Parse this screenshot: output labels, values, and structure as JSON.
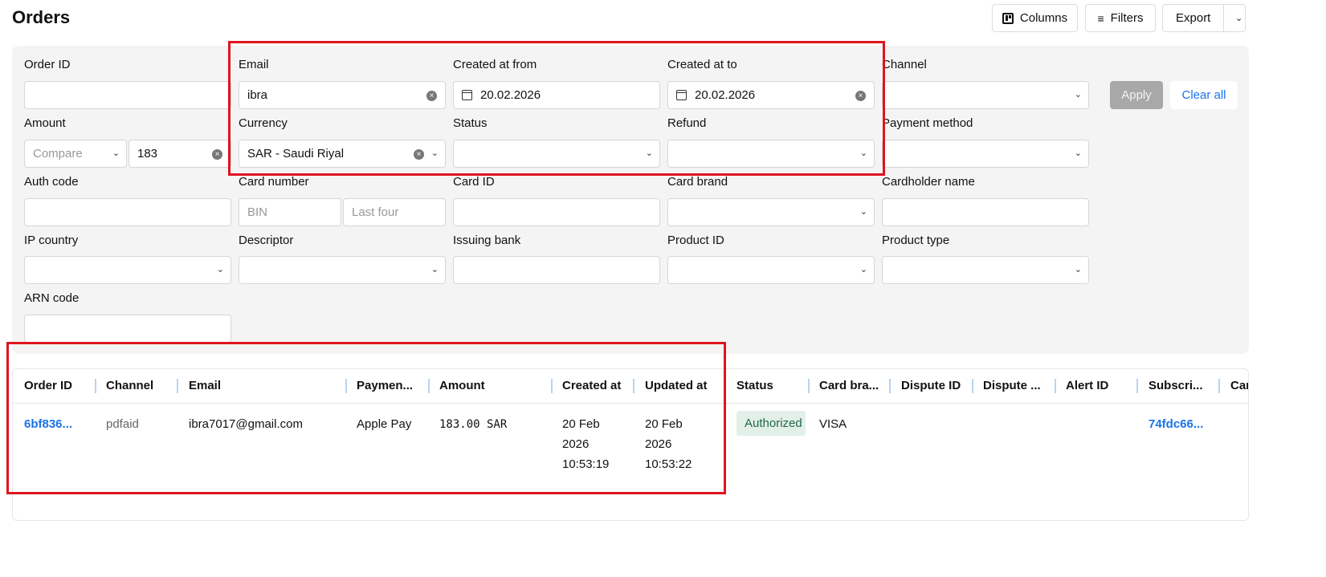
{
  "page_title": "Orders",
  "toolbar": {
    "columns": "Columns",
    "filters": "Filters",
    "export": "Export"
  },
  "filters": {
    "order_id": {
      "label": "Order ID",
      "value": ""
    },
    "email": {
      "label": "Email",
      "value": "ibra"
    },
    "created_from": {
      "label": "Created at from",
      "value": "20.02.2026"
    },
    "created_to": {
      "label": "Created at to",
      "value": "20.02.2026"
    },
    "channel": {
      "label": "Channel",
      "value": ""
    },
    "amount": {
      "label": "Amount",
      "compare_placeholder": "Compare",
      "value": "183"
    },
    "currency": {
      "label": "Currency",
      "value": "SAR - Saudi Riyal"
    },
    "status": {
      "label": "Status",
      "value": ""
    },
    "refund": {
      "label": "Refund",
      "value": ""
    },
    "payment_method": {
      "label": "Payment method",
      "value": ""
    },
    "auth_code": {
      "label": "Auth code",
      "value": ""
    },
    "card_number": {
      "label": "Card number",
      "bin_placeholder": "BIN",
      "last_four_placeholder": "Last four"
    },
    "card_id": {
      "label": "Card ID",
      "value": ""
    },
    "card_brand": {
      "label": "Card brand",
      "value": ""
    },
    "cardholder_name": {
      "label": "Cardholder name",
      "value": ""
    },
    "ip_country": {
      "label": "IP country",
      "value": ""
    },
    "descriptor": {
      "label": "Descriptor",
      "value": ""
    },
    "issuing_bank": {
      "label": "Issuing bank",
      "value": ""
    },
    "product_id": {
      "label": "Product ID",
      "value": ""
    },
    "product_type": {
      "label": "Product type",
      "value": ""
    },
    "arn_code": {
      "label": "ARN code",
      "value": ""
    },
    "apply": "Apply",
    "clear_all": "Clear all"
  },
  "table": {
    "columns": [
      "Order ID",
      "Channel",
      "Email",
      "Paymen...",
      "Amount",
      "Created at",
      "Updated at",
      "Status",
      "Card bra...",
      "Dispute ID",
      "Dispute ...",
      "Alert ID",
      "Subscri...",
      "Car"
    ],
    "rows": [
      {
        "order_id": "6bf836...",
        "channel": "pdfaid",
        "email": "ibra7017@gmail.com",
        "payment": "Apple Pay",
        "amount": "183.00 SAR",
        "created": [
          "20 Feb",
          "2026",
          "10:53:19"
        ],
        "updated": [
          "20 Feb",
          "2026",
          "10:53:22"
        ],
        "status": "Authorized",
        "card_brand": "VISA",
        "subscription": "74fdc66..."
      }
    ]
  },
  "colors": {
    "accent": "#1a73e8",
    "highlight": "#e0141e",
    "status_authorized_bg": "#e3efe9"
  }
}
